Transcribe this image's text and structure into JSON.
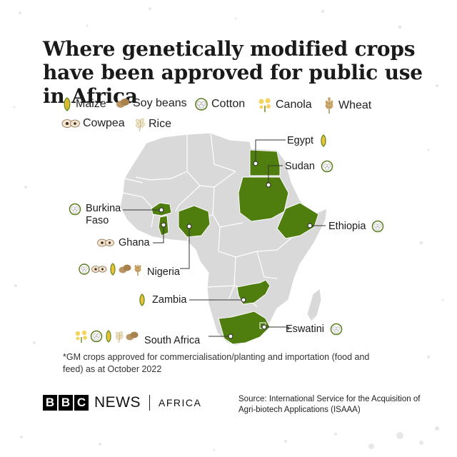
{
  "title": "Where genetically modified crops have been approved for public use in Africa",
  "legend": [
    {
      "label": "Maize",
      "icon": "maize-icon"
    },
    {
      "label": "Soy beans",
      "icon": "soybean-icon"
    },
    {
      "label": "Cotton",
      "icon": "cotton-icon"
    },
    {
      "label": "Canola",
      "icon": "canola-icon"
    },
    {
      "label": "Wheat",
      "icon": "wheat-icon"
    },
    {
      "label": "Cowpea",
      "icon": "cowpea-icon"
    },
    {
      "label": "Rice",
      "icon": "rice-icon"
    }
  ],
  "countries": {
    "egypt": {
      "name": "Egypt",
      "crops": [
        "maize-icon"
      ]
    },
    "sudan": {
      "name": "Sudan",
      "crops": [
        "cotton-icon"
      ]
    },
    "ethiopia": {
      "name": "Ethiopia",
      "crops": [
        "cotton-icon"
      ]
    },
    "burkina_faso": {
      "name": "Burkina Faso",
      "crops": [
        "cotton-icon"
      ]
    },
    "ghana": {
      "name": "Ghana",
      "crops": [
        "cowpea-icon"
      ]
    },
    "nigeria": {
      "name": "Nigeria",
      "crops": [
        "cotton-icon",
        "cowpea-icon",
        "maize-icon",
        "soybean-icon",
        "wheat-icon"
      ]
    },
    "zambia": {
      "name": "Zambia",
      "crops": [
        "maize-icon"
      ]
    },
    "eswatini": {
      "name": "Eswatini",
      "crops": [
        "cotton-icon"
      ]
    },
    "south_africa": {
      "name": "South Africa",
      "crops": [
        "canola-icon",
        "cotton-icon",
        "maize-icon",
        "rice-icon",
        "soybean-icon"
      ]
    }
  },
  "footnote": "*GM crops approved for commercialisation/planting and importation (food and feed) as at October 2022",
  "branding": {
    "b1": "B",
    "b2": "B",
    "b3": "C",
    "news": "NEWS",
    "region": "AFRICA"
  },
  "source": "Source: International Service for the Acquisition of Agri-biotech Applications (ISAAA)",
  "colors": {
    "highlight": "#4f7d0e",
    "land": "#d9d9d9",
    "border": "#ffffff",
    "leader": "#333333"
  }
}
